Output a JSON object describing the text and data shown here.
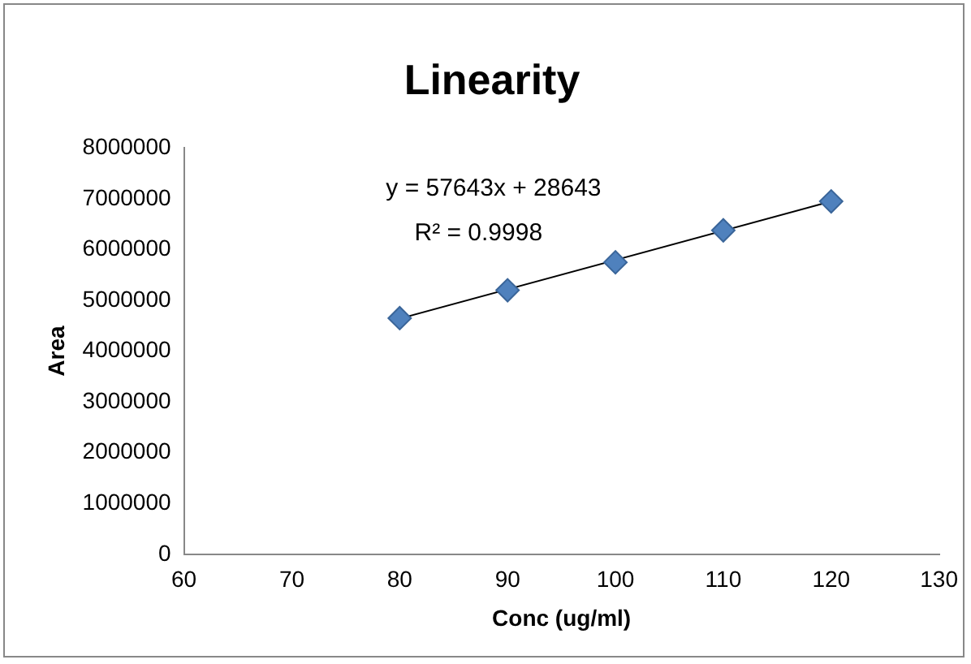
{
  "chart_data": {
    "type": "scatter",
    "title": "Linearity",
    "xlabel": "Conc (ug/ml)",
    "ylabel": "Area",
    "x": [
      80,
      90,
      100,
      110,
      120
    ],
    "series": [
      {
        "type": "scatter",
        "color": "#4f81bd",
        "marker": "diamond",
        "values": [
          4650000,
          5200000,
          5750000,
          6380000,
          6950000
        ]
      },
      {
        "type": "line",
        "color": "#000000",
        "marker": "none",
        "x": [
          80,
          120
        ],
        "values": [
          4640000,
          6950000
        ]
      }
    ],
    "xlim": [
      60,
      130
    ],
    "xticks": [
      60,
      70,
      80,
      90,
      100,
      110,
      120,
      130
    ],
    "ylim": [
      0,
      8000000
    ],
    "yticks": [
      0,
      1000000,
      2000000,
      3000000,
      4000000,
      5000000,
      6000000,
      7000000,
      8000000
    ],
    "grid": false,
    "legend": false,
    "annotations": [
      "y = 57643x + 28643",
      "R² = 0.9998"
    ]
  }
}
